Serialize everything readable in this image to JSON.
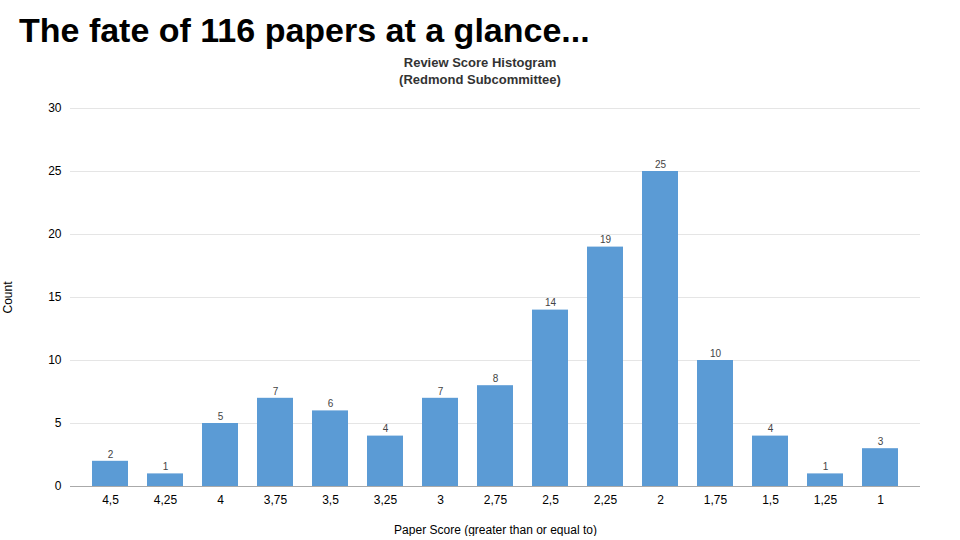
{
  "chart_data": {
    "type": "bar",
    "title": "The fate of 116 papers at a glance...",
    "subtitle": "Review Score Histogram\n(Redmond Subcommittee)",
    "xlabel": "Paper Score (greater than or equal to)",
    "ylabel": "Count",
    "categories": [
      "4,5",
      "4,25",
      "4",
      "3,75",
      "3,5",
      "3,25",
      "3",
      "2,75",
      "2,5",
      "2,25",
      "2",
      "1,75",
      "1,5",
      "1,25",
      "1"
    ],
    "values": [
      2,
      1,
      5,
      7,
      6,
      4,
      7,
      8,
      14,
      19,
      25,
      10,
      4,
      1,
      3
    ],
    "color": "#5B9BD5",
    "ylim": [
      0,
      30
    ],
    "yticks": [
      0,
      5,
      10,
      15,
      20,
      25,
      30
    ],
    "grid": true,
    "data_labels": true
  }
}
